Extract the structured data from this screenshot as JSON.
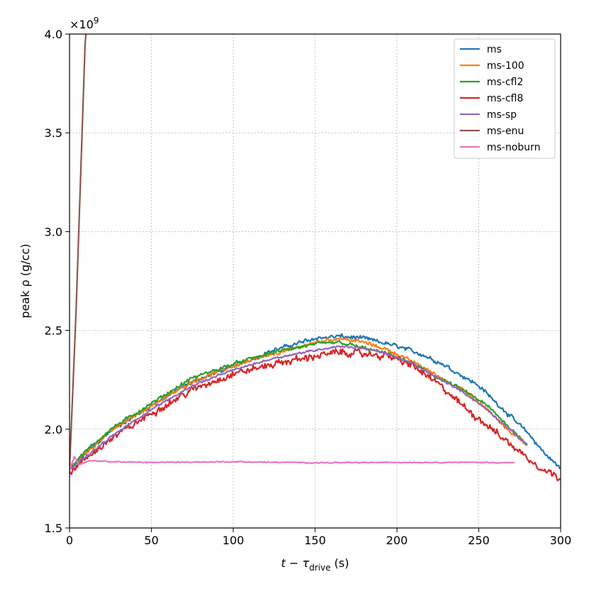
{
  "chart_data": {
    "type": "line",
    "title": "",
    "xlabel": {
      "main": "t − τ",
      "sub": "drive",
      "unit": "(s)"
    },
    "ylabel": "peak ρ (g/cc)",
    "multiplier": {
      "base": "×10",
      "exp": "9"
    },
    "xlim": [
      0,
      300
    ],
    "ylim": [
      1.5,
      4.0
    ],
    "xticks": [
      0,
      50,
      100,
      150,
      200,
      250,
      300
    ],
    "xtick_labels": [
      "0",
      "50",
      "100",
      "150",
      "200",
      "250",
      "300"
    ],
    "yticks": [
      1.5,
      2.0,
      2.5,
      3.0,
      3.5,
      4.0
    ],
    "ytick_labels": [
      "1.5",
      "2.0",
      "2.5",
      "3.0",
      "3.5",
      "4.0"
    ],
    "grid": true,
    "legend_position": "top-right",
    "series": [
      {
        "name": "ms",
        "color": "#1f77b4",
        "noise": 0.012,
        "x": [
          0,
          10,
          25,
          50,
          75,
          100,
          125,
          150,
          165,
          180,
          200,
          215,
          230,
          250,
          265,
          280,
          290,
          300
        ],
        "y": [
          1.8,
          1.88,
          1.99,
          2.12,
          2.24,
          2.32,
          2.4,
          2.46,
          2.47,
          2.46,
          2.42,
          2.38,
          2.32,
          2.22,
          2.1,
          1.98,
          1.88,
          1.8
        ]
      },
      {
        "name": "ms-100",
        "color": "#ff7f0e",
        "noise": 0.01,
        "x": [
          0,
          10,
          25,
          50,
          75,
          100,
          125,
          150,
          165,
          180,
          195,
          210,
          225,
          240,
          255,
          270,
          280
        ],
        "y": [
          1.8,
          1.88,
          1.99,
          2.12,
          2.24,
          2.32,
          2.38,
          2.44,
          2.46,
          2.44,
          2.4,
          2.34,
          2.27,
          2.2,
          2.1,
          1.98,
          1.92
        ]
      },
      {
        "name": "ms-cfl2",
        "color": "#2ca02c",
        "noise": 0.01,
        "x": [
          0,
          10,
          25,
          50,
          75,
          100,
          125,
          150,
          165,
          180,
          195,
          210,
          225,
          240,
          255,
          270,
          280
        ],
        "y": [
          1.8,
          1.89,
          2.0,
          2.13,
          2.26,
          2.33,
          2.39,
          2.43,
          2.44,
          2.41,
          2.38,
          2.33,
          2.26,
          2.2,
          2.12,
          2.0,
          1.92
        ]
      },
      {
        "name": "ms-cfl8",
        "color": "#d62728",
        "noise": 0.02,
        "x": [
          0,
          10,
          25,
          50,
          75,
          100,
          125,
          150,
          165,
          180,
          195,
          210,
          225,
          240,
          255,
          270,
          285,
          300
        ],
        "y": [
          1.78,
          1.85,
          1.95,
          2.08,
          2.2,
          2.28,
          2.33,
          2.37,
          2.39,
          2.38,
          2.37,
          2.32,
          2.23,
          2.12,
          2.02,
          1.92,
          1.82,
          1.75
        ]
      },
      {
        "name": "ms-sp",
        "color": "#9467bd",
        "noise": 0.006,
        "x": [
          0,
          10,
          25,
          50,
          75,
          100,
          125,
          150,
          165,
          180,
          195,
          210,
          225,
          240,
          255,
          270,
          280
        ],
        "y": [
          1.8,
          1.86,
          1.96,
          2.1,
          2.22,
          2.3,
          2.36,
          2.4,
          2.42,
          2.41,
          2.38,
          2.33,
          2.26,
          2.19,
          2.1,
          1.99,
          1.92
        ]
      },
      {
        "name": "ms-enu",
        "color": "#8c564b",
        "noise": 0,
        "x": [
          0,
          4,
          9.5,
          10
        ],
        "y": [
          1.8,
          2.6,
          3.95,
          4.0
        ]
      },
      {
        "name": "ms-noburn",
        "color": "#e377c2",
        "noise": 0.003,
        "x": [
          0,
          3,
          6,
          12,
          25,
          50,
          100,
          150,
          200,
          250,
          272
        ],
        "y": [
          1.8,
          1.86,
          1.82,
          1.84,
          1.835,
          1.832,
          1.835,
          1.83,
          1.832,
          1.832,
          1.83
        ]
      }
    ]
  }
}
